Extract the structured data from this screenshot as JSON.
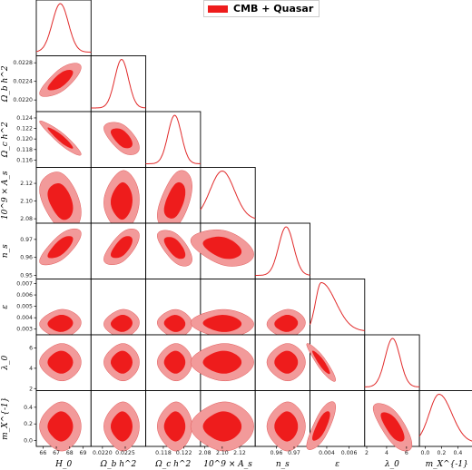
{
  "chart_data": {
    "type": "corner",
    "legend": {
      "label": "CMB + Quasar",
      "color": "#ee1c1c",
      "position": "top-center"
    },
    "colors": {
      "inner": "#ee1c1c",
      "outer": "#f29a9a",
      "line": "#e12a2a"
    },
    "parameters": [
      {
        "key": "H0",
        "label": "H_0",
        "mean": 67.3,
        "sigma": 0.6,
        "range": [
          65.5,
          69.6
        ],
        "ticks": [
          "66",
          "67",
          "68",
          "69"
        ],
        "tickvals": [
          66,
          67,
          68,
          69
        ]
      },
      {
        "key": "obh2",
        "label": "Ω_b h^2",
        "mean": 0.02242,
        "sigma": 0.00015,
        "range": [
          0.02175,
          0.02295
        ],
        "ticks": [
          "0.0220",
          "0.0225"
        ],
        "tickvals": [
          0.022,
          0.0225
        ],
        "yticks": [
          "0.0220",
          "0.0224",
          "0.0228"
        ],
        "ytickvals": [
          0.022,
          0.0224,
          0.0228
        ]
      },
      {
        "key": "och2",
        "label": "Ω_c h^2",
        "mean": 0.1202,
        "sigma": 0.0013,
        "range": [
          0.1146,
          0.1252
        ],
        "ticks": [
          "0.118",
          "0.122"
        ],
        "tickvals": [
          0.118,
          0.122
        ],
        "yticks": [
          "0.116",
          "0.118",
          "0.120",
          "0.122",
          "0.124"
        ],
        "ytickvals": [
          0.116,
          0.118,
          0.12,
          0.122,
          0.124
        ]
      },
      {
        "key": "As",
        "label": "10^9 × A_s",
        "mean": 2.1,
        "sigma": 0.014,
        "range": [
          2.075,
          2.138
        ],
        "ticks": [
          "2.08",
          "2.10",
          "2.12"
        ],
        "tickvals": [
          2.08,
          2.1,
          2.12
        ],
        "yticks": [
          "2.08",
          "2.10",
          "2.12"
        ],
        "ytickvals": [
          2.08,
          2.1,
          2.12
        ]
      },
      {
        "key": "ns",
        "label": "n_s",
        "mean": 0.9655,
        "sigma": 0.0042,
        "range": [
          0.948,
          0.979
        ],
        "ticks": [
          "0.96",
          "0.97"
        ],
        "tickvals": [
          0.96,
          0.97
        ],
        "yticks": [
          "0.95",
          "0.96",
          "0.97"
        ],
        "ytickvals": [
          0.95,
          0.96,
          0.97
        ]
      },
      {
        "key": "eps",
        "label": "ε",
        "mean": 0.0035,
        "sigma": 0.0005,
        "range": [
          0.0025,
          0.0074
        ],
        "ticks": [
          "0.004",
          "0.006"
        ],
        "tickvals": [
          0.004,
          0.006
        ],
        "yticks": [
          "0.003",
          "0.004",
          "0.005",
          "0.006",
          "0.007"
        ],
        "ytickvals": [
          0.003,
          0.004,
          0.005,
          0.006,
          0.007
        ]
      },
      {
        "key": "lam",
        "label": "λ_0",
        "mean": 4.6,
        "sigma": 0.75,
        "range": [
          1.8,
          7.3
        ],
        "ticks": [
          "2",
          "4",
          "6"
        ],
        "tickvals": [
          2,
          4,
          6
        ],
        "yticks": [
          "2",
          "4",
          "6"
        ],
        "ytickvals": [
          2,
          4,
          6
        ]
      },
      {
        "key": "mx",
        "label": "m_X^{-1}",
        "mean": 0.17,
        "sigma": 0.12,
        "range": [
          -0.07,
          0.6
        ],
        "ticks": [
          "0.0",
          "0.2",
          "0.4"
        ],
        "tickvals": [
          0.0,
          0.2,
          0.4
        ],
        "yticks": [
          "0.0",
          "0.2",
          "0.4"
        ],
        "ytickvals": [
          0.0,
          0.2,
          0.4
        ]
      }
    ],
    "correlations": {
      "1_0": 0.72,
      "2_0": -0.92,
      "2_1": -0.55,
      "3_0": -0.35,
      "3_1": 0.05,
      "3_2": 0.45,
      "4_0": 0.7,
      "4_1": 0.6,
      "4_2": -0.6,
      "4_3": -0.35,
      "5_0": 0.05,
      "5_1": 0.05,
      "5_2": -0.05,
      "5_3": -0.05,
      "5_4": 0.05,
      "6_0": 0.0,
      "6_1": 0.0,
      "6_2": 0.0,
      "6_3": 0.0,
      "6_4": 0.0,
      "6_5": -0.9,
      "7_0": 0.0,
      "7_1": 0.0,
      "7_2": 0.0,
      "7_3": 0.0,
      "7_4": 0.0,
      "7_5": 0.75,
      "7_6": -0.7
    }
  }
}
